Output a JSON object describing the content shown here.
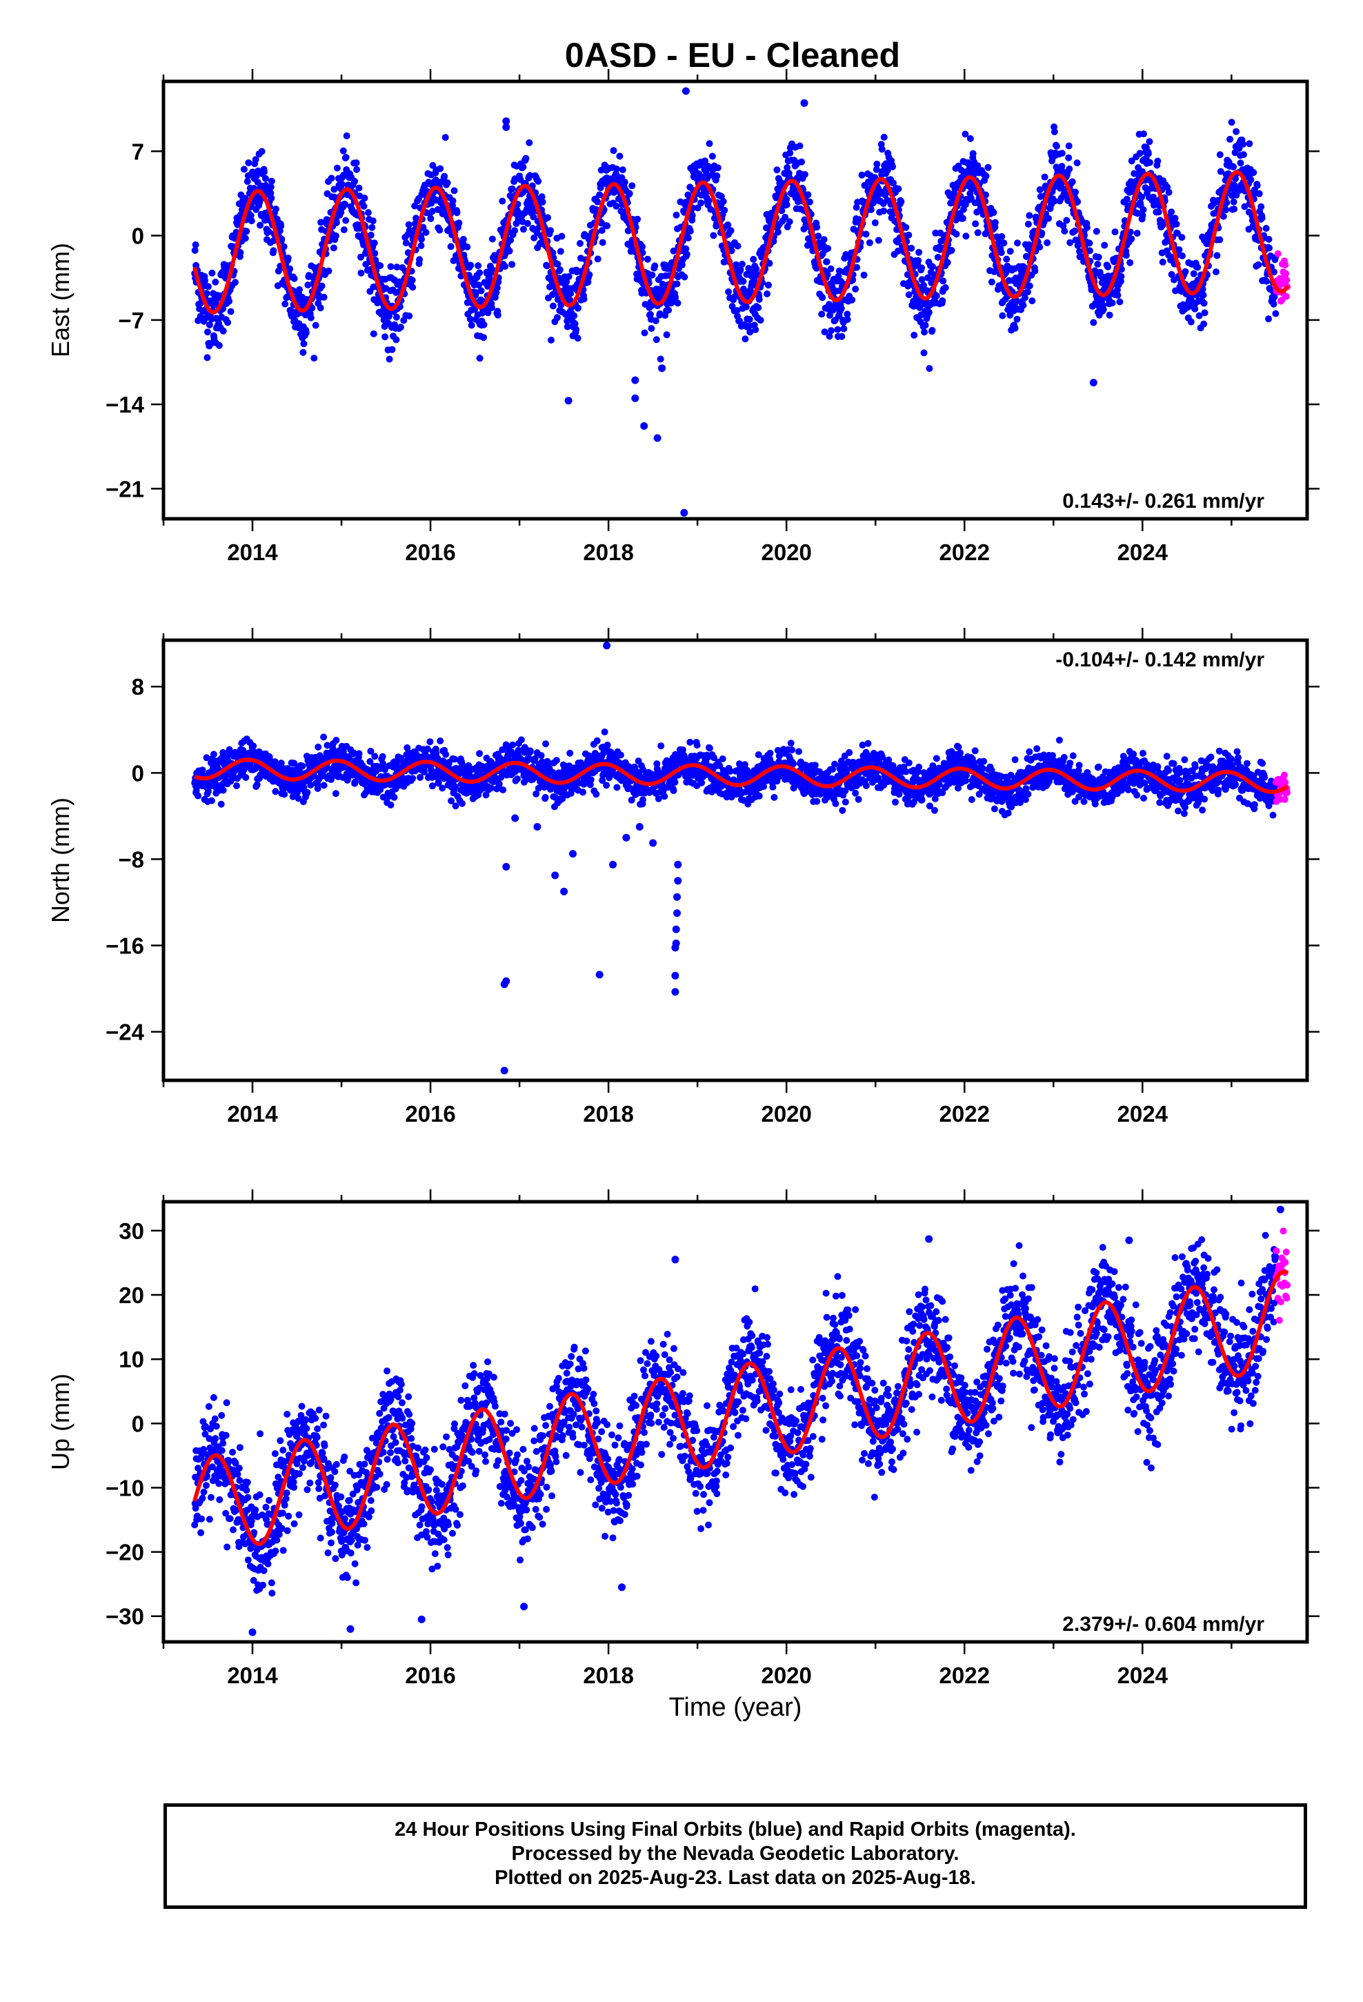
{
  "title": "0ASD  - EU - Cleaned",
  "xlabel": "Time (year)",
  "footer": {
    "line1": "24 Hour Positions Using Final Orbits (blue) and Rapid Orbits (magenta).",
    "line2": "Processed by the Nevada Geodetic Laboratory.",
    "line3": "Plotted on 2025-Aug-23. Last data on 2025-Aug-18."
  },
  "colors": {
    "final": "#0000ff",
    "rapid": "#ff00ff",
    "model": "#ff0000",
    "frame": "#000000"
  },
  "chart_data": [
    {
      "type": "scatter",
      "component": "east",
      "ylabel": "East (mm)",
      "rate_label": "0.143+/- 0.261 mm/yr",
      "rate_position": "bottom-right",
      "xlim": [
        2013.0,
        2025.85
      ],
      "ylim": [
        -23.5,
        12.8
      ],
      "x_ticks": [
        2014,
        2016,
        2018,
        2020,
        2022,
        2024
      ],
      "y_ticks": [
        7,
        0,
        -7,
        -14,
        -21
      ],
      "y_tick_labels": [
        "7",
        "0",
        "−7",
        "−14",
        "−21"
      ],
      "data_span": [
        2013.35,
        2025.5
      ],
      "rapid_span": [
        2025.5,
        2025.63
      ],
      "model": {
        "offset": -1.4,
        "trend": 0.143,
        "amplitude": 5.0,
        "phase_peak": 0.06,
        "semi_amplitude": 0.0,
        "t0": 2013.35
      },
      "scatter_sd": 1.6,
      "outliers": [
        {
          "x": 2016.85,
          "y": 9.5
        },
        {
          "x": 2016.85,
          "y": 9.0
        },
        {
          "x": 2017.55,
          "y": -13.7
        },
        {
          "x": 2018.3,
          "y": -13.5
        },
        {
          "x": 2018.4,
          "y": -15.8
        },
        {
          "x": 2018.55,
          "y": -16.8
        },
        {
          "x": 2018.85,
          "y": -23.0
        },
        {
          "x": 2018.87,
          "y": 12.0
        },
        {
          "x": 2018.3,
          "y": -12.0
        },
        {
          "x": 2020.2,
          "y": 11.0
        },
        {
          "x": 2023.45,
          "y": -12.2
        },
        {
          "x": 2018.6,
          "y": -11.0
        }
      ]
    },
    {
      "type": "scatter",
      "component": "north",
      "ylabel": "North (mm)",
      "rate_label": "-0.104+/- 0.142 mm/yr",
      "rate_position": "top-right",
      "xlim": [
        2013.0,
        2025.85
      ],
      "ylim": [
        -28.5,
        12.3
      ],
      "x_ticks": [
        2014,
        2016,
        2018,
        2020,
        2022,
        2024
      ],
      "y_ticks": [
        8,
        0,
        -8,
        -16,
        -24
      ],
      "y_tick_labels": [
        "8",
        "0",
        "−8",
        "−16",
        "−24"
      ],
      "data_span": [
        2013.35,
        2025.5
      ],
      "rapid_span": [
        2025.5,
        2025.63
      ],
      "model": {
        "offset": 0.4,
        "trend": -0.104,
        "amplitude": 0.9,
        "phase_peak": 0.95,
        "semi_amplitude": 0.0,
        "t0": 2013.35
      },
      "scatter_sd": 0.9,
      "outliers": [
        {
          "x": 2016.85,
          "y": -8.7
        },
        {
          "x": 2016.85,
          "y": -19.3
        },
        {
          "x": 2016.83,
          "y": -19.6
        },
        {
          "x": 2016.83,
          "y": -27.6
        },
        {
          "x": 2017.4,
          "y": -9.5
        },
        {
          "x": 2017.5,
          "y": -11.0
        },
        {
          "x": 2017.6,
          "y": -7.5
        },
        {
          "x": 2017.9,
          "y": -18.7
        },
        {
          "x": 2017.98,
          "y": 11.8
        },
        {
          "x": 2018.05,
          "y": -8.5
        },
        {
          "x": 2018.2,
          "y": -6.0
        },
        {
          "x": 2018.35,
          "y": -5.0
        },
        {
          "x": 2018.5,
          "y": -6.5
        },
        {
          "x": 2018.78,
          "y": -8.5
        },
        {
          "x": 2018.78,
          "y": -10.0
        },
        {
          "x": 2018.77,
          "y": -11.5
        },
        {
          "x": 2018.77,
          "y": -13.0
        },
        {
          "x": 2018.76,
          "y": -14.5
        },
        {
          "x": 2018.76,
          "y": -15.8
        },
        {
          "x": 2018.75,
          "y": -16.2
        },
        {
          "x": 2018.75,
          "y": -18.8
        },
        {
          "x": 2018.75,
          "y": -20.3
        },
        {
          "x": 2017.2,
          "y": -5.0
        },
        {
          "x": 2016.95,
          "y": -4.2
        }
      ]
    },
    {
      "type": "scatter",
      "component": "up",
      "ylabel": "Up (mm)",
      "rate_label": "2.379+/- 0.604 mm/yr",
      "rate_position": "bottom-right",
      "xlim": [
        2013.0,
        2025.85
      ],
      "ylim": [
        -34.0,
        34.5
      ],
      "x_ticks": [
        2014,
        2016,
        2018,
        2020,
        2022,
        2024
      ],
      "y_ticks": [
        30,
        20,
        10,
        0,
        -10,
        -20,
        -30
      ],
      "y_tick_labels": [
        "30",
        "20",
        "10",
        "0",
        "−10",
        "−20",
        "−30"
      ],
      "data_span": [
        2013.35,
        2025.5
      ],
      "rapid_span": [
        2025.5,
        2025.63
      ],
      "model": {
        "offset": -13.0,
        "trend": 2.379,
        "amplitude": 7.5,
        "phase_peak": 0.58,
        "semi_amplitude": 0.0,
        "t0": 2013.35
      },
      "scatter_sd": 4.0,
      "outliers": [
        {
          "x": 2014.0,
          "y": -32.5
        },
        {
          "x": 2015.1,
          "y": -32.0
        },
        {
          "x": 2015.9,
          "y": -30.5
        },
        {
          "x": 2018.75,
          "y": 25.5
        },
        {
          "x": 2021.6,
          "y": 28.7
        },
        {
          "x": 2023.85,
          "y": 28.5
        },
        {
          "x": 2025.55,
          "y": 33.3
        },
        {
          "x": 2017.05,
          "y": -28.5
        },
        {
          "x": 2018.15,
          "y": -25.5
        }
      ]
    }
  ]
}
